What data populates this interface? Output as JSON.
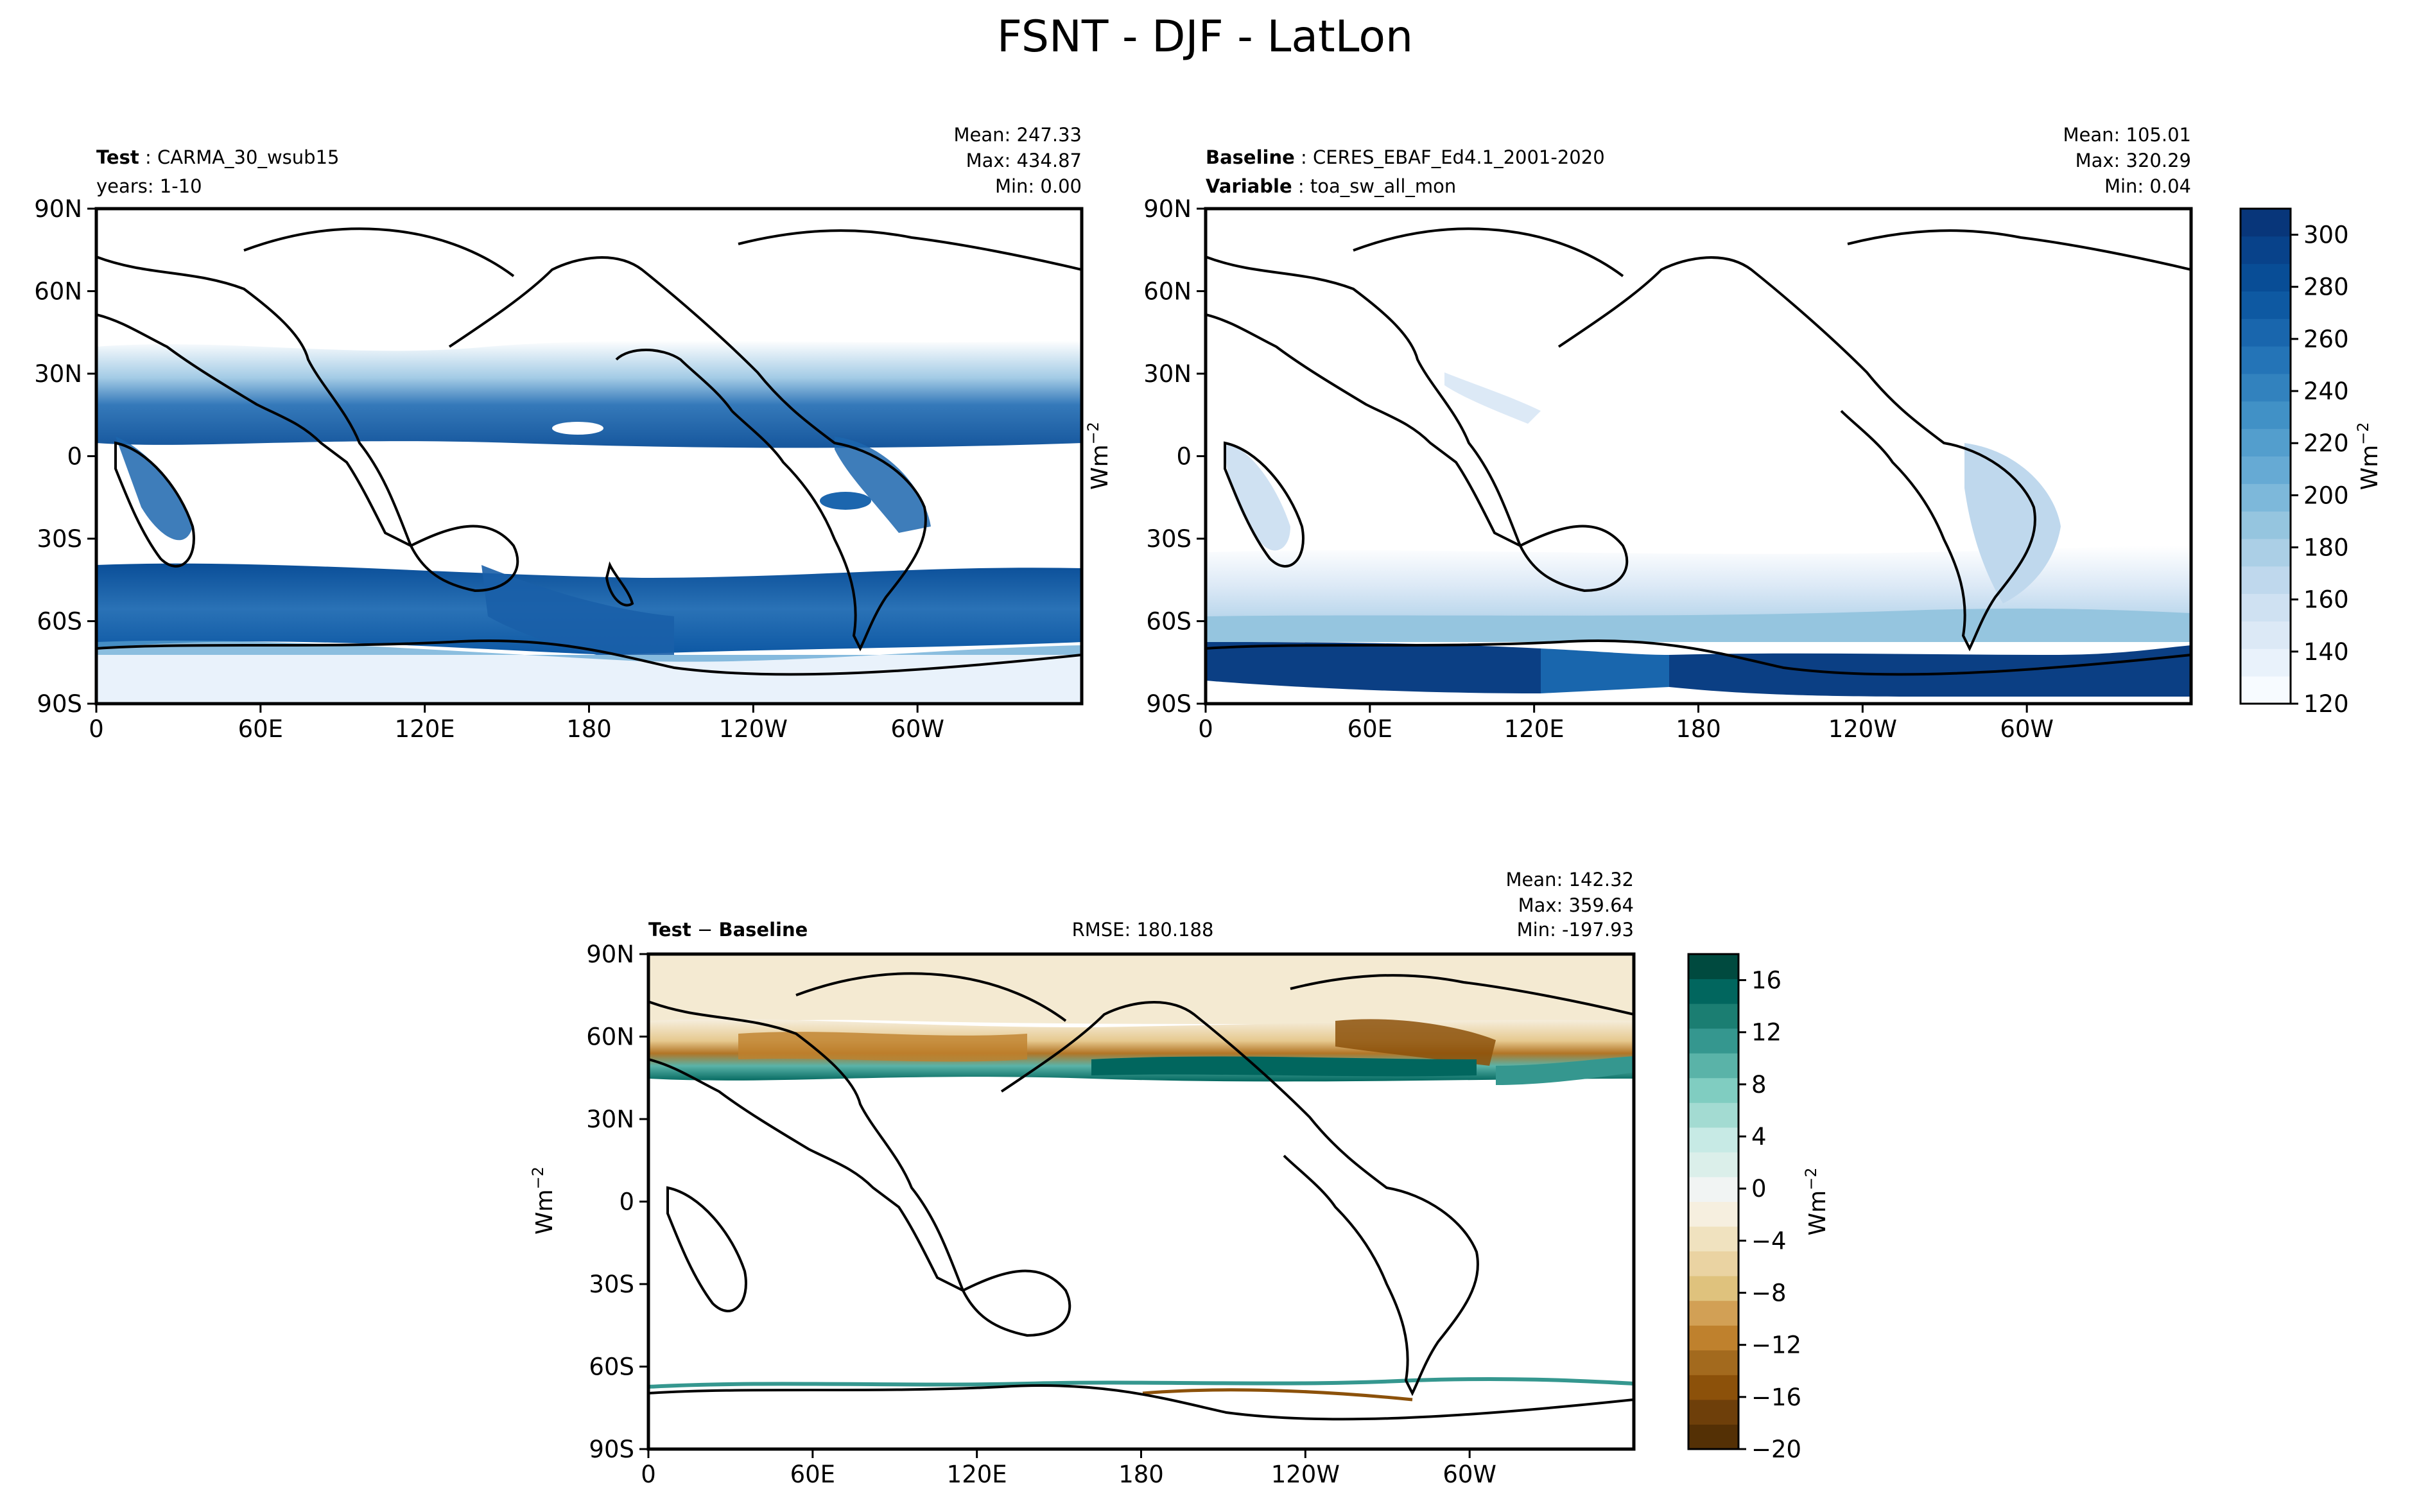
{
  "figure": {
    "title": "FSNT - DJF - LatLon"
  },
  "chart_data": [
    {
      "type": "heatmap",
      "panel": "test",
      "left_label_1": "Test",
      "left_value_1": "CARMA_30_wsub15",
      "left_label_2": "years: 1-10",
      "stats": {
        "mean": "Mean: 247.33",
        "max": "Max: 434.87",
        "min": "Min:  0.00"
      },
      "xticks": [
        "0",
        "60E",
        "120E",
        "180",
        "120W",
        "60W"
      ],
      "yticks": [
        "90N",
        "60N",
        "30N",
        "0",
        "30S",
        "60S",
        "90S"
      ],
      "xlim": [
        0,
        360
      ],
      "ylim": [
        -90,
        90
      ],
      "colormap": "Blues"
    },
    {
      "type": "heatmap",
      "panel": "baseline",
      "left_label_1": "Baseline",
      "left_value_1": "CERES_EBAF_Ed4.1_2001-2020",
      "left_label_2": "Variable",
      "left_value_2": "toa_sw_all_mon",
      "stats": {
        "mean": "Mean: 105.01",
        "max": "Max: 320.29",
        "min": "Min:  0.04"
      },
      "xticks": [
        "0",
        "60E",
        "120E",
        "180",
        "120W",
        "60W"
      ],
      "yticks": [
        "90N",
        "60N",
        "30N",
        "0",
        "30S",
        "60S",
        "90S"
      ],
      "xlim": [
        0,
        360
      ],
      "ylim": [
        -90,
        90
      ],
      "colorbar": {
        "ticks": [
          "120",
          "140",
          "160",
          "180",
          "200",
          "220",
          "240",
          "260",
          "280",
          "300"
        ],
        "range": [
          120,
          310
        ],
        "label": "Wm",
        "label_sup": "−2",
        "colors": [
          "#f7fbff",
          "#e9f2fb",
          "#dce9f6",
          "#cfe1f2",
          "#bfd8ed",
          "#abcfe6",
          "#95c5df",
          "#7db8da",
          "#66aad4",
          "#539ecd",
          "#4191c6",
          "#3282be",
          "#2474b7",
          "#1966ad",
          "#0e59a2",
          "#084d96",
          "#08428a",
          "#08367a"
        ]
      },
      "left_axis_label": "Wm",
      "left_axis_label_sup": "−2"
    },
    {
      "type": "heatmap",
      "panel": "difference",
      "left_label_1": "Test",
      "left_label_op": "−",
      "left_label_1b": "Baseline",
      "center_label": "RMSE: 180.188",
      "stats": {
        "mean": "Mean: 142.32",
        "max": "Max: 359.64",
        "min": "Min: -197.93"
      },
      "xticks": [
        "0",
        "60E",
        "120E",
        "180",
        "120W",
        "60W"
      ],
      "yticks": [
        "90N",
        "60N",
        "30N",
        "0",
        "30S",
        "60S",
        "90S"
      ],
      "xlim": [
        0,
        360
      ],
      "ylim": [
        -90,
        90
      ],
      "colorbar": {
        "ticks": [
          "16",
          "12",
          "8",
          "4",
          "0",
          "−4",
          "−8",
          "−12",
          "−16",
          "−20"
        ],
        "tick_values": [
          16,
          12,
          8,
          4,
          0,
          -4,
          -8,
          -12,
          -16,
          -20
        ],
        "range": [
          -20,
          18
        ],
        "label": "Wm",
        "label_sup": "−2",
        "colors": [
          "#543005",
          "#6e3f0a",
          "#8c510a",
          "#a36a1e",
          "#bf812d",
          "#d2a055",
          "#dfc27d",
          "#ead3a2",
          "#f0e2bf",
          "#f6efdf",
          "#f1f4f3",
          "#dbefea",
          "#c7eae5",
          "#a3dbd2",
          "#80cdc1",
          "#5ab3a8",
          "#35978f",
          "#1b7e72",
          "#01665e",
          "#004a3f"
        ]
      },
      "left_axis_label": "Wm",
      "left_axis_label_sup": "−2"
    }
  ]
}
